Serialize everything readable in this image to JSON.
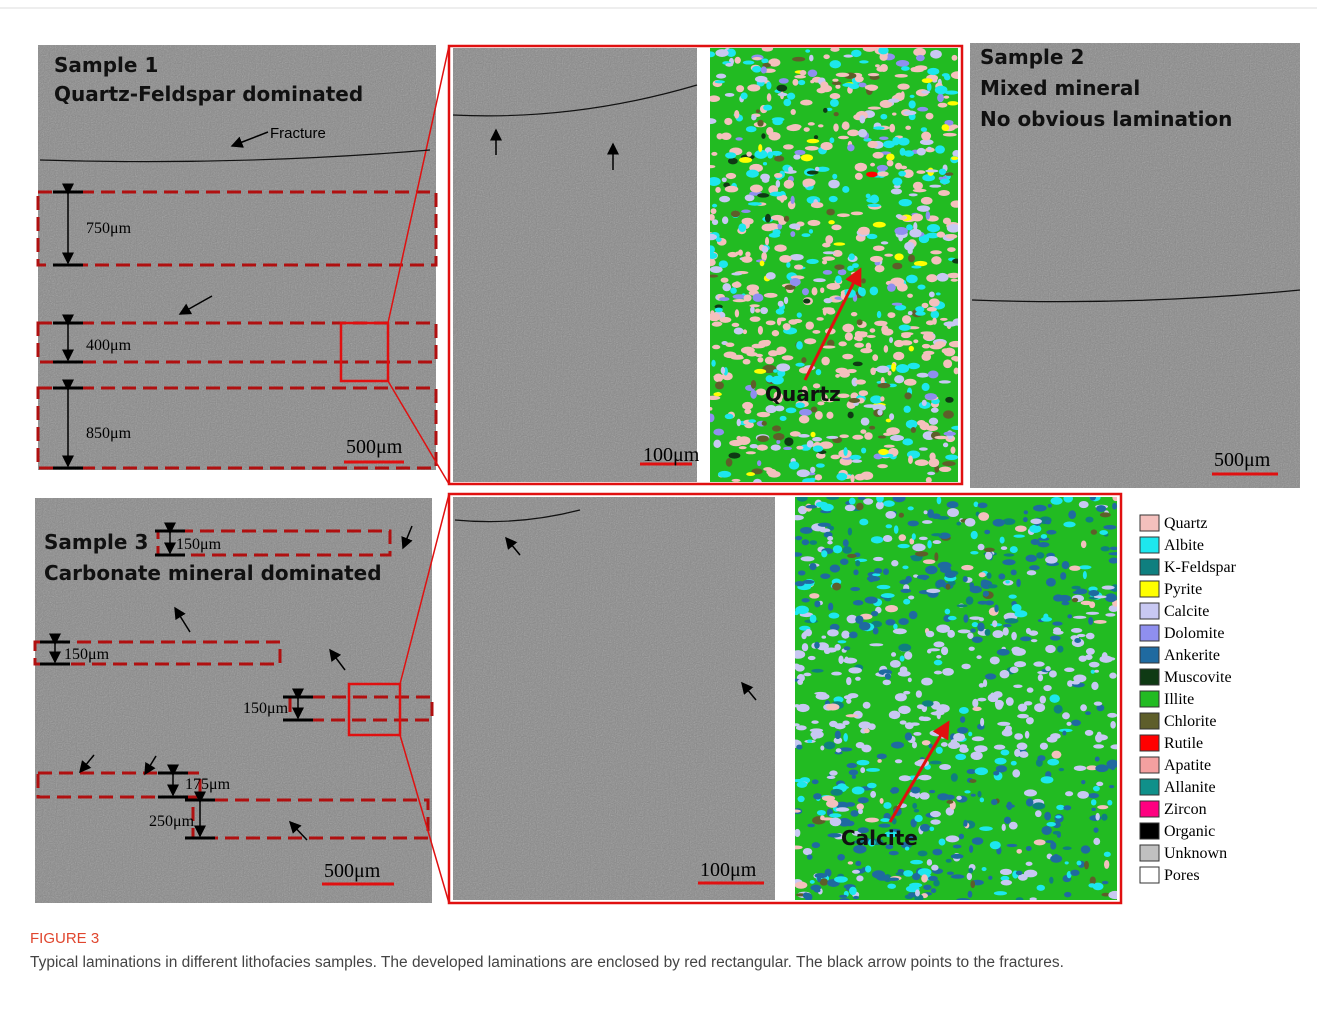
{
  "figure": {
    "sample1": {
      "title": "Sample 1",
      "subtitle": "Quartz-Feldspar dominated",
      "fracture": "Fracture",
      "laminations": [
        "750μm",
        "400μm",
        "850μm"
      ],
      "scale": "500μm"
    },
    "zoom1": {
      "scale": "100μm",
      "mineral": "Quartz"
    },
    "sample2": {
      "title": "Sample 2",
      "line2": "Mixed mineral",
      "line3": "No obvious lamination",
      "scale": "500μm"
    },
    "sample3": {
      "title": "Sample 3",
      "subtitle": "Carbonate mineral dominated",
      "laminations": [
        "150μm",
        "150μm",
        "150μm",
        "175μm",
        "250μm"
      ],
      "scale": "500μm"
    },
    "zoom3": {
      "scale": "100μm",
      "mineral": "Calcite"
    },
    "legend": [
      {
        "name": "Quartz",
        "color": "#f4c0bd"
      },
      {
        "name": "Albite",
        "color": "#1de7ee"
      },
      {
        "name": "K-Feldspar",
        "color": "#0f7f7f"
      },
      {
        "name": "Pyrite",
        "color": "#ffff00"
      },
      {
        "name": "Calcite",
        "color": "#c8c8f2"
      },
      {
        "name": "Dolomite",
        "color": "#8f8fef"
      },
      {
        "name": "Ankerite",
        "color": "#1f6aa0"
      },
      {
        "name": "Muscovite",
        "color": "#0f3a14"
      },
      {
        "name": "Illite",
        "color": "#22bb22"
      },
      {
        "name": "Chlorite",
        "color": "#5e5e2a"
      },
      {
        "name": "Rutile",
        "color": "#ff0000"
      },
      {
        "name": "Apatite",
        "color": "#f4a0a0"
      },
      {
        "name": "Allanite",
        "color": "#10908a"
      },
      {
        "name": "Zircon",
        "color": "#ff0080"
      },
      {
        "name": "Organic",
        "color": "#000000"
      },
      {
        "name": "Unknown",
        "color": "#c0c0c0"
      },
      {
        "name": "Pores",
        "color": "#ffffff"
      }
    ],
    "caption": {
      "label": "FIGURE 3",
      "text": "Typical laminations in different lithofacies samples. The developed laminations are enclosed by red rectangular. The black arrow points to the fractures."
    }
  }
}
